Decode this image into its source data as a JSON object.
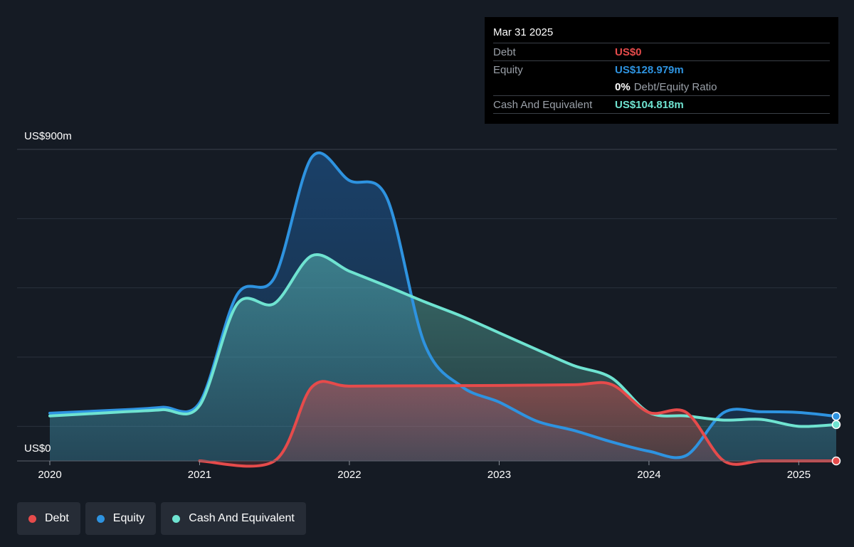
{
  "tooltip": {
    "date": "Mar 31 2025",
    "debt_label": "Debt",
    "debt_value": "US$0",
    "equity_label": "Equity",
    "equity_value": "US$128.979m",
    "ratio_pct": "0%",
    "ratio_label": "Debt/Equity Ratio",
    "cash_label": "Cash And Equivalent",
    "cash_value": "US$104.818m"
  },
  "legend": {
    "debt": "Debt",
    "equity": "Equity",
    "cash": "Cash And Equivalent"
  },
  "colors": {
    "debt": "#e64b4b",
    "equity": "#2e93e0",
    "cash": "#6fe3d1",
    "background": "#151b24"
  },
  "chart_data": {
    "type": "area",
    "y_top_label": "US$900m",
    "y_bottom_label": "US$0",
    "ylim": [
      0,
      900
    ],
    "xlim": [
      2020,
      2025.25
    ],
    "x_ticks": [
      "2020",
      "2021",
      "2022",
      "2023",
      "2024",
      "2025"
    ],
    "grid": true,
    "legend_position": "bottom-left",
    "series": [
      {
        "name": "Debt",
        "points": [
          [
            2021.0,
            0
          ],
          [
            2021.5,
            0
          ],
          [
            2021.75,
            214
          ],
          [
            2022.0,
            216
          ],
          [
            2022.5,
            217
          ],
          [
            2023.0,
            218
          ],
          [
            2023.5,
            220
          ],
          [
            2023.75,
            221
          ],
          [
            2024.0,
            140
          ],
          [
            2024.25,
            140
          ],
          [
            2024.5,
            0
          ],
          [
            2024.75,
            0
          ],
          [
            2025.0,
            0
          ],
          [
            2025.25,
            0
          ]
        ]
      },
      {
        "name": "Equity",
        "points": [
          [
            2020.0,
            138
          ],
          [
            2020.5,
            148
          ],
          [
            2020.75,
            155
          ],
          [
            2021.0,
            168
          ],
          [
            2021.25,
            480
          ],
          [
            2021.5,
            530
          ],
          [
            2021.75,
            878
          ],
          [
            2022.0,
            810
          ],
          [
            2022.25,
            760
          ],
          [
            2022.5,
            340
          ],
          [
            2022.75,
            215
          ],
          [
            2023.0,
            170
          ],
          [
            2023.25,
            115
          ],
          [
            2023.5,
            88
          ],
          [
            2023.75,
            55
          ],
          [
            2024.0,
            28
          ],
          [
            2024.25,
            16
          ],
          [
            2024.5,
            140
          ],
          [
            2024.75,
            142
          ],
          [
            2025.0,
            140
          ],
          [
            2025.25,
            129
          ]
        ]
      },
      {
        "name": "Cash And Equivalent",
        "points": [
          [
            2020.0,
            130
          ],
          [
            2020.5,
            142
          ],
          [
            2020.75,
            148
          ],
          [
            2021.0,
            160
          ],
          [
            2021.25,
            453
          ],
          [
            2021.5,
            455
          ],
          [
            2021.75,
            593
          ],
          [
            2022.0,
            548
          ],
          [
            2022.25,
            505
          ],
          [
            2022.5,
            460
          ],
          [
            2022.75,
            418
          ],
          [
            2023.0,
            370
          ],
          [
            2023.25,
            322
          ],
          [
            2023.5,
            275
          ],
          [
            2023.75,
            240
          ],
          [
            2024.0,
            140
          ],
          [
            2024.25,
            130
          ],
          [
            2024.5,
            118
          ],
          [
            2024.75,
            120
          ],
          [
            2025.0,
            100
          ],
          [
            2025.25,
            105
          ]
        ]
      }
    ]
  }
}
